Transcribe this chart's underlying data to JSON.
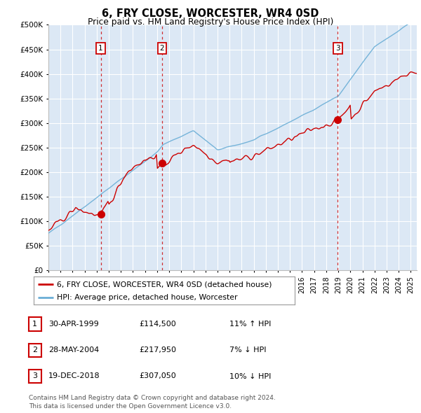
{
  "title": "6, FRY CLOSE, WORCESTER, WR4 0SD",
  "subtitle": "Price paid vs. HM Land Registry's House Price Index (HPI)",
  "ylim": [
    0,
    500000
  ],
  "yticks": [
    0,
    50000,
    100000,
    150000,
    200000,
    250000,
    300000,
    350000,
    400000,
    450000,
    500000
  ],
  "xlim_start": 1995.0,
  "xlim_end": 2025.5,
  "background_color": "#ffffff",
  "plot_bg_color": "#dce8f5",
  "grid_color": "#ffffff",
  "hpi_color": "#6aaed6",
  "price_color": "#cc0000",
  "vline_color": "#cc0000",
  "sale_points": [
    {
      "date": 1999.33,
      "price": 114500,
      "label": "1"
    },
    {
      "date": 2004.41,
      "price": 217950,
      "label": "2"
    },
    {
      "date": 2018.96,
      "price": 307050,
      "label": "3"
    }
  ],
  "vline_dates": [
    1999.33,
    2004.41,
    2018.96
  ],
  "legend_price_label": "6, FRY CLOSE, WORCESTER, WR4 0SD (detached house)",
  "legend_hpi_label": "HPI: Average price, detached house, Worcester",
  "table_rows": [
    {
      "num": "1",
      "date": "30-APR-1999",
      "price": "£114,500",
      "hpi": "11% ↑ HPI"
    },
    {
      "num": "2",
      "date": "28-MAY-2004",
      "price": "£217,950",
      "hpi": "7% ↓ HPI"
    },
    {
      "num": "3",
      "date": "19-DEC-2018",
      "price": "£307,050",
      "hpi": "10% ↓ HPI"
    }
  ],
  "footnote": "Contains HM Land Registry data © Crown copyright and database right 2024.\nThis data is licensed under the Open Government Licence v3.0."
}
